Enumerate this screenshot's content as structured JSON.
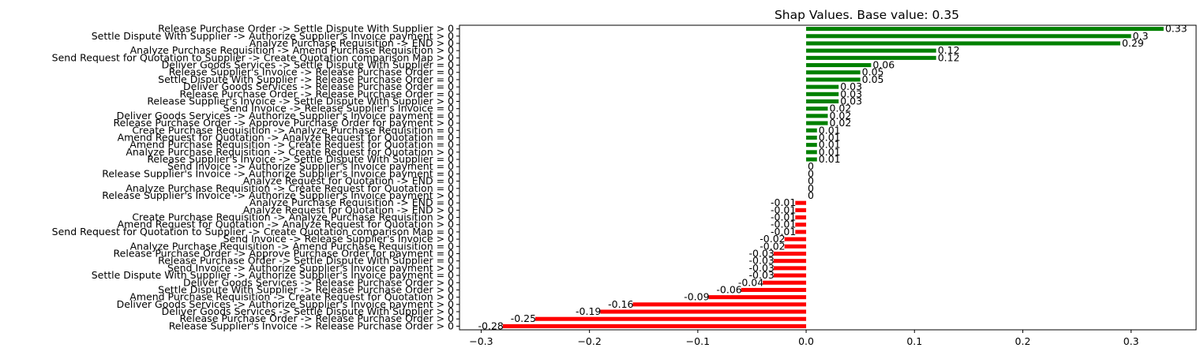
{
  "chart_data": {
    "type": "bar",
    "orientation": "horizontal",
    "title": "Shap Values. Base value: 0.35",
    "xlabel": "",
    "ylabel": "",
    "xlim": [
      -0.32,
      0.36
    ],
    "xticks": [
      -0.3,
      -0.2,
      -0.1,
      0.0,
      0.1,
      0.2,
      0.3
    ],
    "xtick_labels": [
      "−0.3",
      "−0.2",
      "−0.1",
      "0.0",
      "0.1",
      "0.2",
      "0.3"
    ],
    "grid": false,
    "legend": "none",
    "colors": {
      "positive": "#008000",
      "negative": "#ff0000",
      "text": "#000000",
      "axis": "#000000"
    },
    "bars": [
      {
        "label": "Release Purchase Order -> Settle Dispute With Supplier > 0",
        "value": 0.33,
        "value_label": "0.33"
      },
      {
        "label": "Settle Dispute With Supplier -> Authorize Supplier's Invoice payment > 0",
        "value": 0.3,
        "value_label": "0.3"
      },
      {
        "label": "Analyze Purchase Requisition -> END > 0",
        "value": 0.29,
        "value_label": "0.29"
      },
      {
        "label": "Analyze Purchase Requisition -> Amend Purchase Requisition > 0",
        "value": 0.12,
        "value_label": "0.12"
      },
      {
        "label": "Send Request for Quotation to Supplier -> Create Quotation comparison Map > 0",
        "value": 0.12,
        "value_label": "0.12"
      },
      {
        "label": "Deliver Goods Services -> Settle Dispute With Supplier = 0",
        "value": 0.06,
        "value_label": "0.06"
      },
      {
        "label": "Release Supplier's Invoice -> Release Purchase Order = 0",
        "value": 0.05,
        "value_label": "0.05"
      },
      {
        "label": "Settle Dispute With Supplier -> Release Purchase Order = 0",
        "value": 0.05,
        "value_label": "0.05"
      },
      {
        "label": "Deliver Goods Services -> Release Purchase Order = 0",
        "value": 0.03,
        "value_label": "0.03"
      },
      {
        "label": "Release Purchase Order -> Release Purchase Order = 0",
        "value": 0.03,
        "value_label": "0.03"
      },
      {
        "label": "Release Supplier's Invoice -> Settle Dispute With Supplier > 0",
        "value": 0.03,
        "value_label": "0.03"
      },
      {
        "label": "Send Invoice -> Release Supplier's Invoice = 0",
        "value": 0.02,
        "value_label": "0.02"
      },
      {
        "label": "Deliver Goods Services -> Authorize Supplier's Invoice payment = 0",
        "value": 0.02,
        "value_label": "0.02"
      },
      {
        "label": "Release Purchase Order -> Approve Purchase Order for payment > 0",
        "value": 0.02,
        "value_label": "0.02"
      },
      {
        "label": "Create Purchase Requisition -> Analyze Purchase Requisition = 0",
        "value": 0.01,
        "value_label": "0.01"
      },
      {
        "label": "Amend Request for Quotation -> Analyze Request for Quotation = 0",
        "value": 0.01,
        "value_label": "0.01"
      },
      {
        "label": "Amend Purchase Requisition -> Create Request for Quotation = 0",
        "value": 0.01,
        "value_label": "0.01"
      },
      {
        "label": "Analyze Purchase Requisition -> Create Request for Quotation > 0",
        "value": 0.01,
        "value_label": "0.01"
      },
      {
        "label": "Release Supplier's Invoice -> Settle Dispute With Supplier = 0",
        "value": 0.01,
        "value_label": "0.01"
      },
      {
        "label": "Send Invoice -> Authorize Supplier's Invoice payment = 0",
        "value": 0.0,
        "value_label": "0"
      },
      {
        "label": "Release Supplier's Invoice -> Authorize Supplier's Invoice payment = 0",
        "value": 0.0,
        "value_label": "0"
      },
      {
        "label": "Analyze Request for Quotation -> END = 0",
        "value": 0.0,
        "value_label": "0"
      },
      {
        "label": "Analyze Purchase Requisition -> Create Request for Quotation = 0",
        "value": 0.0,
        "value_label": "0"
      },
      {
        "label": "Release Supplier's Invoice -> Authorize Supplier's Invoice payment > 0",
        "value": 0.0,
        "value_label": "0"
      },
      {
        "label": "Analyze Purchase Requisition -> END = 0",
        "value": -0.01,
        "value_label": "-0.01"
      },
      {
        "label": "Analyze Request for Quotation -> END > 0",
        "value": -0.01,
        "value_label": "-0.01"
      },
      {
        "label": "Create Purchase Requisition -> Analyze Purchase Requisition > 0",
        "value": -0.01,
        "value_label": "-0.01"
      },
      {
        "label": "Amend Request for Quotation -> Analyze Request for Quotation > 0",
        "value": -0.01,
        "value_label": "-0.01"
      },
      {
        "label": "Send Request for Quotation to Supplier -> Create Quotation comparison Map = 0",
        "value": -0.01,
        "value_label": "-0.01"
      },
      {
        "label": "Send Invoice -> Release Supplier's Invoice > 0",
        "value": -0.02,
        "value_label": "-0.02"
      },
      {
        "label": "Analyze Purchase Requisition -> Amend Purchase Requisition = 0",
        "value": -0.02,
        "value_label": "-0.02"
      },
      {
        "label": "Release Purchase Order -> Approve Purchase Order for payment = 0",
        "value": -0.03,
        "value_label": "-0.03"
      },
      {
        "label": "Release Purchase Order -> Settle Dispute With Supplier = 0",
        "value": -0.03,
        "value_label": "-0.03"
      },
      {
        "label": "Send Invoice -> Authorize Supplier's Invoice payment > 0",
        "value": -0.03,
        "value_label": "-0.03"
      },
      {
        "label": "Settle Dispute With Supplier -> Authorize Supplier's Invoice payment = 0",
        "value": -0.03,
        "value_label": "-0.03"
      },
      {
        "label": "Deliver Goods Services -> Release Purchase Order > 0",
        "value": -0.04,
        "value_label": "-0.04"
      },
      {
        "label": "Settle Dispute With Supplier -> Release Purchase Order > 0",
        "value": -0.06,
        "value_label": "-0.06"
      },
      {
        "label": "Amend Purchase Requisition -> Create Request for Quotation > 0",
        "value": -0.09,
        "value_label": "-0.09"
      },
      {
        "label": "Deliver Goods Services -> Authorize Supplier's Invoice payment > 0",
        "value": -0.16,
        "value_label": "-0.16"
      },
      {
        "label": "Deliver Goods Services -> Settle Dispute With Supplier > 0",
        "value": -0.19,
        "value_label": "-0.19"
      },
      {
        "label": "Release Purchase Order -> Release Purchase Order > 0",
        "value": -0.25,
        "value_label": "-0.25"
      },
      {
        "label": "Release Supplier's Invoice -> Release Purchase Order > 0",
        "value": -0.28,
        "value_label": "-0.28"
      }
    ]
  }
}
